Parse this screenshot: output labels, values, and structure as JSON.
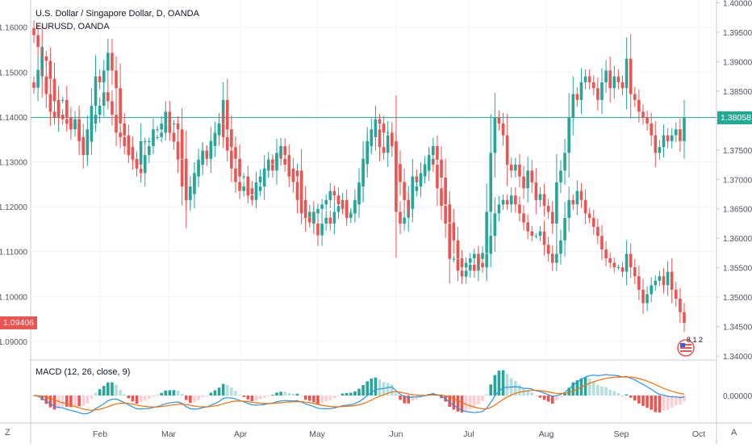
{
  "legend": {
    "title": "U.S. Dollar / Singapore Dollar, D, OANDA",
    "compare": "EURUSD, OANDA",
    "macd": "MACD (12, 26, close, 9)"
  },
  "corners": {
    "left": "Z",
    "right": "A"
  },
  "price_tags": {
    "left_value": "1.09406",
    "left_color": "#ef5350",
    "right_value": "1.38058",
    "right_color": "#22ab94"
  },
  "badge_text": "8 1 2",
  "colors": {
    "up": "#26a69a",
    "down": "#ef5350",
    "grid": "#f0f3fa",
    "axis_text": "#50535e",
    "hline": "#26a69a",
    "macd_line": "#2196f3",
    "signal_line": "#ff6d00"
  },
  "chart_data": {
    "type": "candlestick",
    "x_ticks": [
      "Feb",
      "Mar",
      "Apr",
      "May",
      "Jun",
      "Jul",
      "Aug",
      "Sep",
      "Oct"
    ],
    "left_axis": {
      "label": "EURUSD",
      "ticks": [
        "1.16000",
        "1.15000",
        "1.14000",
        "1.13000",
        "1.12000",
        "1.11000",
        "1.10000",
        "1.09000"
      ],
      "range": [
        1.0862,
        1.1657
      ]
    },
    "right_axis": {
      "label": "USDSGD",
      "ticks": [
        "1.40000",
        "1.39500",
        "1.39000",
        "1.38500",
        "1.38000",
        "1.37500",
        "1.37000",
        "1.36500",
        "1.36000",
        "1.35500",
        "1.35000",
        "1.34500",
        "1.34000"
      ],
      "range": [
        1.3396,
        1.4002
      ]
    },
    "macd_axis": {
      "ticks": [
        "0.00000"
      ]
    },
    "series": [
      {
        "name": "USDSGD",
        "axis": "right",
        "closes": [
          1.3945,
          1.3925,
          1.3875,
          1.3845,
          1.3815,
          1.3805,
          1.3835,
          1.3835,
          1.3805,
          1.3785,
          1.3795,
          1.3765,
          1.3755,
          1.3785,
          1.3825,
          1.3875,
          1.3865,
          1.3885,
          1.3915,
          1.3885,
          1.3855,
          1.3795,
          1.3775,
          1.3755,
          1.3735,
          1.3725,
          1.3765,
          1.3765,
          1.3765,
          1.3785,
          1.3785,
          1.3795,
          1.3815,
          1.3795,
          1.3795,
          1.3785,
          1.3735,
          1.3665,
          1.3675,
          1.3705,
          1.3725,
          1.3745,
          1.3735,
          1.3765,
          1.3775,
          1.3795,
          1.3835,
          1.3785,
          1.3755,
          1.3735,
          1.3705,
          1.3705,
          1.3685,
          1.3675,
          1.3695,
          1.3705,
          1.3715,
          1.3725,
          1.3715,
          1.3745,
          1.3735,
          1.3725,
          1.3705,
          1.3705,
          1.3715,
          1.3665,
          1.3635,
          1.3645,
          1.3625,
          1.3605,
          1.3625,
          1.3635,
          1.3625,
          1.3645,
          1.3655,
          1.3665,
          1.3645,
          1.3645,
          1.3665,
          1.3695,
          1.3735,
          1.3765,
          1.3785,
          1.3785,
          1.3755,
          1.3745,
          1.3775,
          1.3765,
          1.3645,
          1.3625,
          1.3635,
          1.3665,
          1.3705,
          1.3695,
          1.3705,
          1.3715,
          1.3735,
          1.3725,
          1.3685,
          1.3655,
          1.3625,
          1.3565,
          1.3565,
          1.3545,
          1.3535,
          1.3545,
          1.3555,
          1.3545,
          1.3565,
          1.3575,
          1.3645,
          1.3745,
          1.3805,
          1.3795,
          1.3775,
          1.3725,
          1.3715,
          1.3725,
          1.3705,
          1.3685,
          1.3715,
          1.3695,
          1.3665,
          1.3675,
          1.3655,
          1.3645,
          1.3625,
          1.3695,
          1.3715,
          1.3745,
          1.3805,
          1.3845,
          1.3835,
          1.3865,
          1.3875,
          1.3865,
          1.3855,
          1.3835,
          1.3865,
          1.3885,
          1.3855,
          1.3875,
          1.3865,
          1.3855,
          1.3905,
          1.3845,
          1.3835,
          1.3815,
          1.3805,
          1.3795,
          1.3775,
          1.3745,
          1.3755,
          1.3775,
          1.3765,
          1.3775,
          1.3785,
          1.3765,
          1.3805
        ]
      },
      {
        "name": "EURUSD",
        "axis": "left",
        "closes": [
          1.1465,
          1.1505,
          1.1535,
          1.1525,
          1.1485,
          1.1435,
          1.1405,
          1.1395,
          1.1385,
          1.1375,
          1.1395,
          1.1355,
          1.1315,
          1.1345,
          1.1385,
          1.1405,
          1.1425,
          1.1455,
          1.1435,
          1.1405,
          1.1365,
          1.1355,
          1.1335,
          1.1315,
          1.1305,
          1.1285,
          1.1275,
          1.1315,
          1.1335,
          1.1355,
          1.1355,
          1.1365,
          1.1385,
          1.1365,
          1.1345,
          1.1305,
          1.1245,
          1.1215,
          1.1245,
          1.1275,
          1.1305,
          1.1325,
          1.1315,
          1.1335,
          1.1365,
          1.1385,
          1.1355,
          1.1325,
          1.1285,
          1.1255,
          1.1235,
          1.1245,
          1.1225,
          1.1215,
          1.1235,
          1.1245,
          1.1285,
          1.1305,
          1.1295,
          1.1315,
          1.1335,
          1.1315,
          1.1285,
          1.1255,
          1.1215,
          1.1185,
          1.1175,
          1.1165,
          1.1185,
          1.1195,
          1.1205,
          1.1215,
          1.1235,
          1.1225,
          1.1205,
          1.1195,
          1.1175,
          1.1185,
          1.1205,
          1.1245,
          1.1295,
          1.1335,
          1.1355,
          1.1395,
          1.1385,
          1.1365,
          1.1365,
          1.1335,
          1.1295,
          1.1255,
          1.1215,
          1.1195,
          1.1235,
          1.1245,
          1.1275,
          1.1295,
          1.1315,
          1.1335,
          1.1305,
          1.1265,
          1.1205,
          1.1165,
          1.1125,
          1.1085,
          1.1065,
          1.1075,
          1.1085,
          1.1095,
          1.1075,
          1.1065,
          1.1095,
          1.1135,
          1.1185,
          1.1205,
          1.1215,
          1.1205,
          1.1225,
          1.1205,
          1.1185,
          1.1165,
          1.1145,
          1.1135,
          1.1135,
          1.1145,
          1.1115,
          1.1095,
          1.1075,
          1.1095,
          1.1125,
          1.1175,
          1.1215,
          1.1205,
          1.1235,
          1.1215,
          1.1185,
          1.1175,
          1.1155,
          1.1135,
          1.1105,
          1.1085,
          1.1075,
          1.1065,
          1.1065,
          1.1055,
          1.1095,
          1.1065,
          1.1045,
          1.1015,
          1.0985,
          1.1005,
          1.1025,
          1.1035,
          1.1045,
          1.1025,
          1.1055,
          1.1015,
          1.0995,
          1.0965,
          1.0941
        ]
      },
      {
        "name": "MACD",
        "axis": "macd"
      },
      {
        "name": "Signal",
        "axis": "macd"
      },
      {
        "name": "Histogram",
        "axis": "macd"
      }
    ]
  }
}
